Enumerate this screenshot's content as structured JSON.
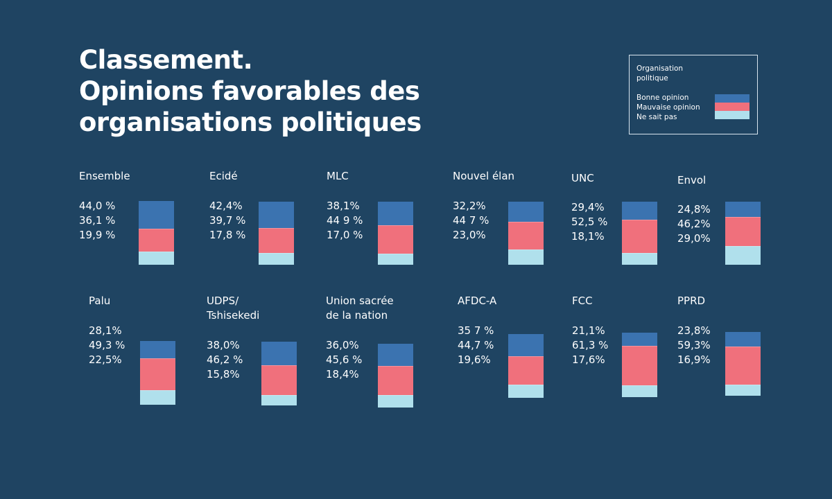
{
  "title": [
    "Classement.",
    "Opinions favorables des",
    "organisations politiques"
  ],
  "legend": {
    "title": "Organisation politique",
    "items": [
      {
        "label": "Bonne opinion",
        "color": "#3b73b0"
      },
      {
        "label": "Mauvaise opinion",
        "color": "#f0707c"
      },
      {
        "label": "Ne sait pas",
        "color": "#b0e0ec"
      }
    ]
  },
  "chart_data": {
    "type": "bar",
    "stacked": true,
    "series": [
      {
        "name": "Bonne opinion",
        "color": "#3b73b0"
      },
      {
        "name": "Mauvaise opinion",
        "color": "#f0707c"
      },
      {
        "name": "Ne sait pas",
        "color": "#b0e0ec"
      }
    ],
    "panels": [
      {
        "label": "Ensemble",
        "values": [
          44.0,
          36.1,
          19.9
        ],
        "texts": [
          "44,0 %",
          "36,1 %",
          "19,9  %"
        ]
      },
      {
        "label": "Ecidé",
        "values": [
          42.4,
          39.7,
          17.8
        ],
        "texts": [
          "42,4%",
          "39,7 %",
          "17,8 %"
        ]
      },
      {
        "label": "MLC",
        "values": [
          38.1,
          44.9,
          17.0
        ],
        "texts": [
          "38,1%",
          "44 9 %",
          "17,0 %"
        ]
      },
      {
        "label": "Nouvel élan",
        "values": [
          32.2,
          44.7,
          23.0
        ],
        "texts": [
          "32,2%",
          "44 7 %",
          "23,0%"
        ]
      },
      {
        "label": "UNC",
        "values": [
          29.4,
          52.5,
          18.1
        ],
        "texts": [
          "29,4%",
          "52,5 %",
          "18,1%"
        ]
      },
      {
        "label": "Envol",
        "values": [
          24.8,
          46.2,
          29.0
        ],
        "texts": [
          "24,8%",
          "46,2%",
          "29,0%"
        ]
      },
      {
        "label": "Palu",
        "values": [
          28.1,
          49.3,
          22.5
        ],
        "texts": [
          "28,1%",
          "49,3 %",
          "22,5%"
        ]
      },
      {
        "label": "UDPS/ Tshisekedi",
        "label_lines": [
          "UDPS/",
          "Tshisekedi"
        ],
        "values": [
          38.0,
          46.2,
          15.8
        ],
        "texts": [
          "38,0%",
          "46,2 %",
          "15,8%"
        ]
      },
      {
        "label": "Union sacrée de la nation",
        "label_lines": [
          "Union sacrée",
          "de la nation"
        ],
        "values": [
          36.0,
          45.6,
          18.4
        ],
        "texts": [
          "36,0%",
          "45,6 %",
          "18,4%"
        ]
      },
      {
        "label": "AFDC-A",
        "values": [
          35.7,
          44.7,
          19.6
        ],
        "texts": [
          "35 7 %",
          "44,7 %",
          "19,6%"
        ]
      },
      {
        "label": "FCC",
        "values": [
          21.1,
          61.3,
          17.6
        ],
        "texts": [
          "21,1%",
          "61,3 %",
          "17,6%"
        ]
      },
      {
        "label": "PPRD",
        "values": [
          23.8,
          59.3,
          16.9
        ],
        "texts": [
          "23,8%",
          "59,3%",
          "16,9%"
        ]
      }
    ]
  }
}
